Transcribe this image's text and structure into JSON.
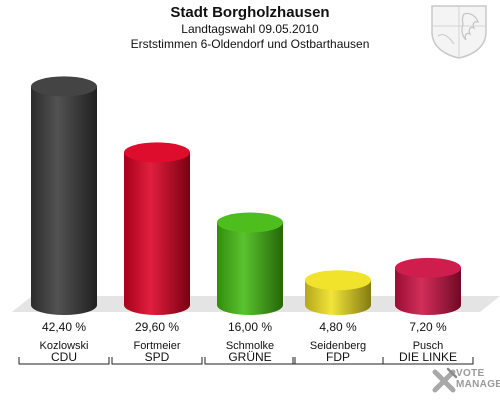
{
  "header": {
    "title": "Stadt Borgholzhausen",
    "subtitle1": "Landtagswahl 09.05.2010",
    "subtitle2": "Erststimmen 6-Oldendorf und Ostbarthausen"
  },
  "logo": {
    "line1": "VOTE",
    "line2": "MANAGER"
  },
  "chart_data": {
    "type": "bar",
    "categories": [
      "CDU",
      "SPD",
      "GRÜNE",
      "FDP",
      "DIE LINKE"
    ],
    "candidates": [
      "Kozlowski",
      "Fortmeier",
      "Schmolke",
      "Seidenberg",
      "Pusch"
    ],
    "values": [
      42.4,
      29.6,
      16.0,
      4.8,
      7.2
    ],
    "value_labels": [
      "42,40 %",
      "29,60 %",
      "16,00 %",
      "4,80 %",
      "7,20 %"
    ],
    "colors": [
      "#3a3a3a",
      "#dd0022",
      "#44bb11",
      "#f0e020",
      "#cc1144"
    ],
    "ylim": [
      0,
      45
    ]
  }
}
